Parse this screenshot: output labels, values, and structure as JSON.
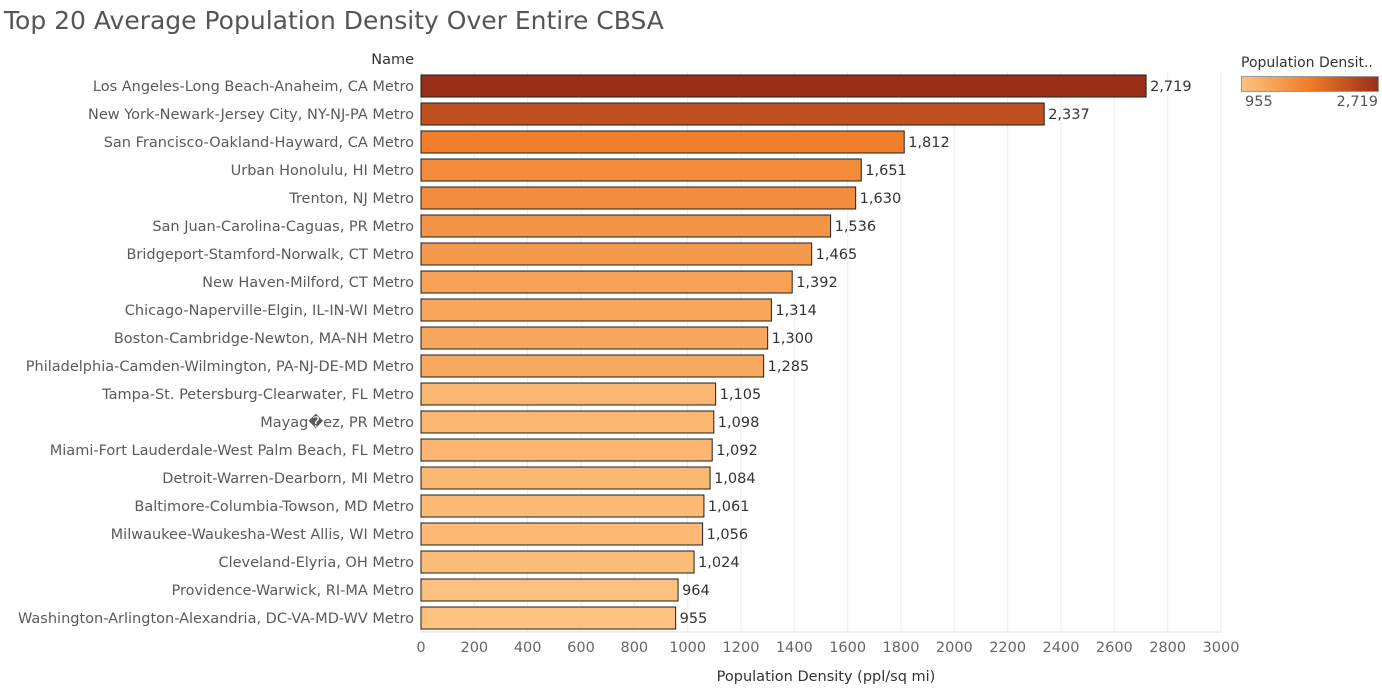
{
  "chart_data": {
    "type": "bar",
    "orientation": "horizontal",
    "title": "Top 20 Average Population Density Over Entire CBSA",
    "row_header": "Name",
    "xlabel": "Population Density (ppl/sq mi)",
    "ylabel": "Name",
    "xlim": [
      0,
      3000
    ],
    "x_ticks": [
      "0",
      "200",
      "400",
      "600",
      "800",
      "1000",
      "1200",
      "1400",
      "1600",
      "1800",
      "2000",
      "2200",
      "2400",
      "2600",
      "2800",
      "3000"
    ],
    "grid": true,
    "categories": [
      "Los Angeles-Long Beach-Anaheim, CA Metro",
      "New York-Newark-Jersey City, NY-NJ-PA Metro",
      "San Francisco-Oakland-Hayward, CA Metro",
      "Urban Honolulu, HI Metro",
      "Trenton, NJ Metro",
      "San Juan-Carolina-Caguas, PR Metro",
      "Bridgeport-Stamford-Norwalk, CT Metro",
      "New Haven-Milford, CT Metro",
      "Chicago-Naperville-Elgin, IL-IN-WI Metro",
      "Boston-Cambridge-Newton, MA-NH Metro",
      "Philadelphia-Camden-Wilmington, PA-NJ-DE-MD Metro",
      "Tampa-St. Petersburg-Clearwater, FL Metro",
      "Mayag�ez, PR Metro",
      "Miami-Fort Lauderdale-West Palm Beach, FL Metro",
      "Detroit-Warren-Dearborn, MI Metro",
      "Baltimore-Columbia-Towson, MD Metro",
      "Milwaukee-Waukesha-West Allis, WI Metro",
      "Cleveland-Elyria, OH Metro",
      "Providence-Warwick, RI-MA Metro",
      "Washington-Arlington-Alexandria, DC-VA-MD-WV Metro"
    ],
    "values": [
      2719,
      2337,
      1812,
      1651,
      1630,
      1536,
      1465,
      1392,
      1314,
      1300,
      1285,
      1105,
      1098,
      1092,
      1084,
      1061,
      1056,
      1024,
      964,
      955
    ],
    "value_labels": [
      "2,719",
      "2,337",
      "1,812",
      "1,651",
      "1,630",
      "1,536",
      "1,465",
      "1,392",
      "1,314",
      "1,300",
      "1,285",
      "1,105",
      "1,098",
      "1,092",
      "1,084",
      "1,061",
      "1,056",
      "1,024",
      "964",
      "955"
    ],
    "legend": {
      "title": "Population Densit..",
      "min_label": "955",
      "max_label": "2,719",
      "min": 955,
      "max": 2719,
      "position": "top-right"
    },
    "colors": {
      "low": "#fdc280",
      "mid": "#f07c28",
      "high": "#9a2e18",
      "bar_stroke": "#1e1e1e",
      "gridline": "#eeeeee"
    }
  }
}
